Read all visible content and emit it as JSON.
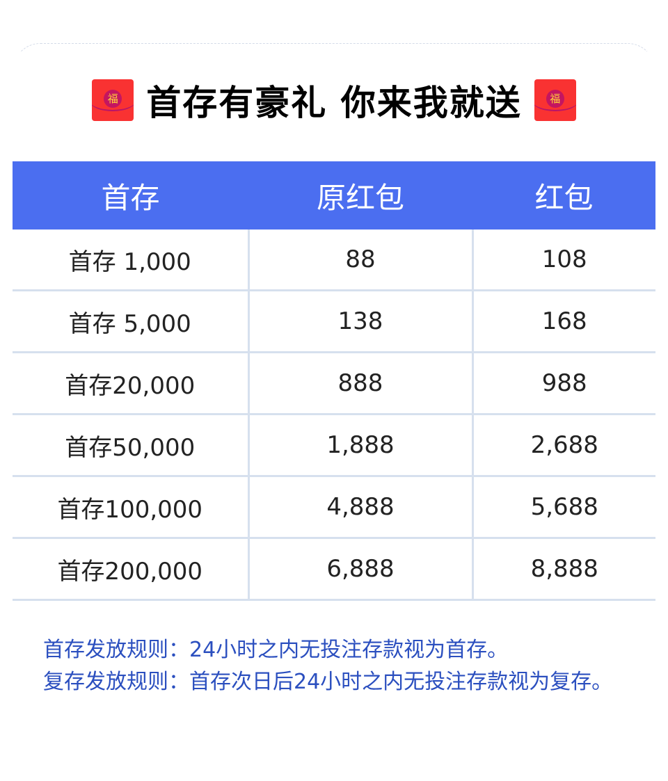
{
  "title": "首存有豪礼 你来我就送",
  "envelope_char": "福",
  "colors": {
    "header": "#4b6ef0",
    "envelope": "#f93232",
    "rules_text": "#2b4fbf"
  },
  "table": {
    "headers": [
      "首存",
      "原红包",
      "红包"
    ],
    "rows": [
      [
        "首存 1,000",
        "88",
        "108"
      ],
      [
        "首存 5,000",
        "138",
        "168"
      ],
      [
        "首存20,000",
        "888",
        "988"
      ],
      [
        "首存50,000",
        "1,888",
        "2,688"
      ],
      [
        "首存100,000",
        "4,888",
        "5,688"
      ],
      [
        "首存200,000",
        "6,888",
        "8,888"
      ]
    ]
  },
  "rules": [
    "首存发放规则：24小时之内无投注存款视为首存。",
    "复存发放规则：首存次日后24小时之内无投注存款视为复存。"
  ]
}
